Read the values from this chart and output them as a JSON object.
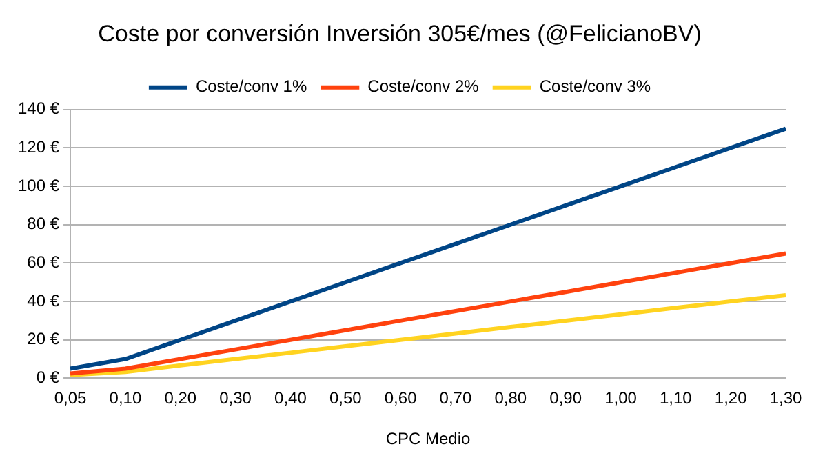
{
  "chart_data": {
    "type": "line",
    "title": "Coste por conversión Inversión 305€/mes (@FelicianoBV)",
    "xlabel": "CPC Medio",
    "categories": [
      "0,05",
      "0,10",
      "0,20",
      "0,30",
      "0,40",
      "0,50",
      "0,60",
      "0,70",
      "0,80",
      "0,90",
      "1,00",
      "1,10",
      "1,20",
      "1,30"
    ],
    "series": [
      {
        "name": "Coste/conv 1%",
        "color": "#004586",
        "values": [
          5,
          10,
          20,
          30,
          40,
          50,
          60,
          70,
          80,
          90,
          100,
          110,
          120,
          130
        ]
      },
      {
        "name": "Coste/conv 2%",
        "color": "#ff420e",
        "values": [
          2.5,
          5,
          10,
          15,
          20,
          25,
          30,
          35,
          40,
          45,
          50,
          55,
          60,
          65
        ]
      },
      {
        "name": "Coste/conv 3%",
        "color": "#ffd320",
        "values": [
          1.7,
          3.3,
          6.7,
          10,
          13.3,
          16.7,
          20,
          23.3,
          26.7,
          30,
          33.3,
          36.7,
          40,
          43.3
        ]
      }
    ],
    "ylim": [
      0,
      140
    ],
    "yticks": [
      {
        "value": 0,
        "label": "0 €"
      },
      {
        "value": 20,
        "label": "20 €"
      },
      {
        "value": 40,
        "label": "40 €"
      },
      {
        "value": 60,
        "label": "60 €"
      },
      {
        "value": 80,
        "label": "80 €"
      },
      {
        "value": 100,
        "label": "100 €"
      },
      {
        "value": 120,
        "label": "120 €"
      },
      {
        "value": 140,
        "label": "140 €"
      }
    ],
    "grid": "y",
    "legend": "top",
    "marker": "none",
    "line_style": "solid"
  }
}
